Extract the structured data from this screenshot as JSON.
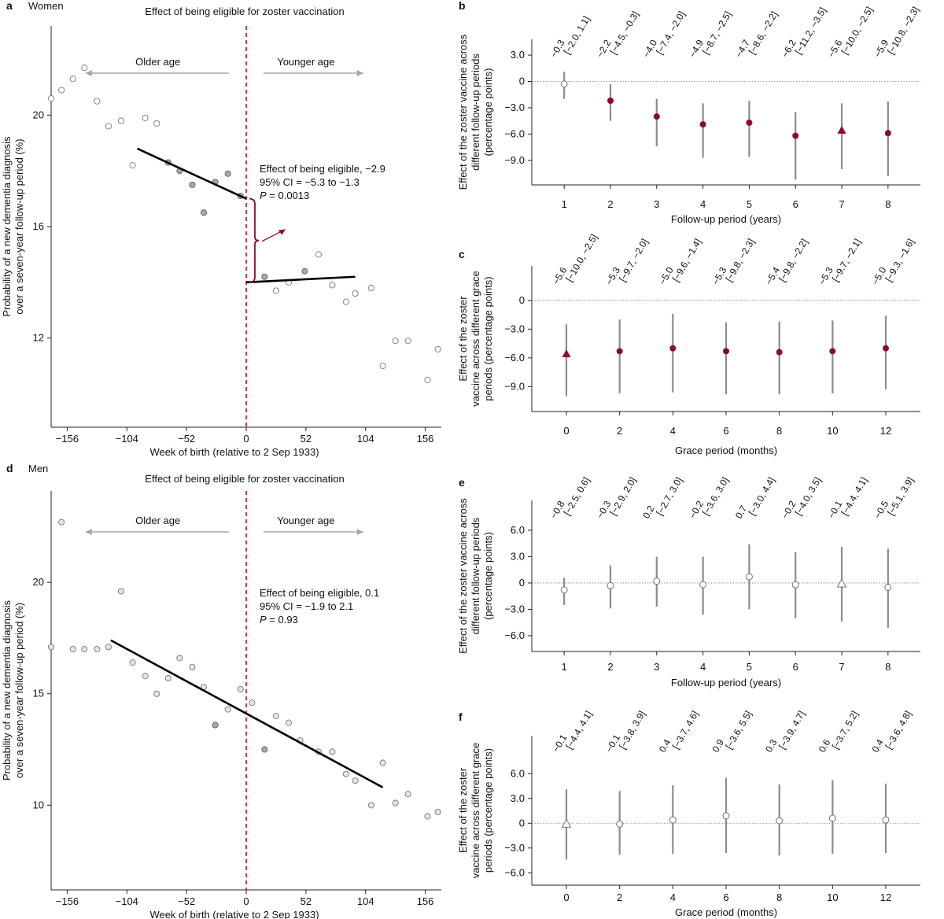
{
  "colors": {
    "crimson": "#8b0a30",
    "dashed_line": "#c0161a",
    "open_marker": "#ffffff",
    "ci_bar": "#8c8c8c",
    "grey_dot": "#a8a8a8",
    "light_dot": "#e4e4e4",
    "arrow_grey": "#a6a6a6"
  },
  "chart_data": [
    {
      "id": "a",
      "panel_letter": "a",
      "subtitle": "Women",
      "type": "scatter",
      "title": "Effect of being eligible for zoster vaccination",
      "xlabel": "Week of birth (relative to 2 Sep 1933)",
      "ylabel": [
        "Probability of a new dementia diagnosis",
        "over a seven-year follow-up period (%)"
      ],
      "xlim": [
        -170,
        170
      ],
      "ylim": [
        8.8,
        23.2
      ],
      "xticks": [
        -156,
        -104,
        -52,
        0,
        52,
        104,
        156
      ],
      "yticks": [
        12,
        16,
        20
      ],
      "older_label": "Older age",
      "younger_label": "Younger age",
      "annotation": [
        "Effect of being eligible, −2.9",
        "95% CI = −5.3 to −1.3",
        "P = 0.0013"
      ],
      "points_light": [
        [
          -170,
          20.6
        ],
        [
          -161,
          20.9
        ],
        [
          -151,
          21.3
        ],
        [
          -141,
          21.7
        ],
        [
          -130,
          20.5
        ],
        [
          -120,
          19.6
        ],
        [
          -109,
          19.8
        ],
        [
          -99,
          18.2
        ],
        [
          -88,
          19.9
        ],
        [
          -78,
          19.7
        ],
        [
          158,
          10.5
        ],
        [
          167,
          11.6
        ],
        [
          130,
          11.9
        ],
        [
          141,
          11.9
        ],
        [
          119,
          11.0
        ],
        [
          109,
          13.8
        ],
        [
          95,
          13.6
        ],
        [
          87,
          13.3
        ],
        [
          75,
          13.9
        ],
        [
          63,
          15.0
        ],
        [
          37,
          14.0
        ],
        [
          26,
          13.7
        ]
      ],
      "points_dark": [
        [
          -68,
          18.3
        ],
        [
          -58,
          18.0
        ],
        [
          -47,
          17.5
        ],
        [
          -37,
          16.5
        ],
        [
          -27,
          17.6
        ],
        [
          -16,
          17.9
        ],
        [
          -5,
          17.1
        ],
        [
          16,
          14.2
        ],
        [
          51,
          14.4
        ]
      ],
      "fit_left": [
        [
          -95,
          18.8
        ],
        [
          0,
          17.0
        ]
      ],
      "fit_right": [
        [
          0,
          14.0
        ],
        [
          95,
          14.2
        ]
      ],
      "brace_range": [
        14.0,
        17.0
      ]
    },
    {
      "id": "d",
      "panel_letter": "d",
      "subtitle": "Men",
      "type": "scatter",
      "title": "Effect of being eligible for zoster vaccination",
      "xlabel": "Week of birth (relative to 2 Sep 1933)",
      "ylabel": [
        "Probability of a new dementia diagnosis",
        "over a seven-year follow-up period (%)"
      ],
      "xlim": [
        -170,
        170
      ],
      "ylim": [
        6.2,
        24.1
      ],
      "xticks": [
        -156,
        -104,
        -52,
        0,
        52,
        104,
        156
      ],
      "yticks": [
        10,
        15,
        20
      ],
      "older_label": "Older age",
      "younger_label": "Younger age",
      "annotation": [
        "Effect of being eligible, 0.1",
        "95% CI = −1.9 to 2.1",
        "P = 0.93"
      ],
      "points_light": [
        [
          -170,
          17.1
        ],
        [
          -161,
          22.7
        ],
        [
          -151,
          17.0
        ],
        [
          -141,
          17.0
        ],
        [
          -130,
          17.0
        ],
        [
          -120,
          17.1
        ],
        [
          -109,
          19.6
        ],
        [
          -99,
          16.4
        ],
        [
          -88,
          15.8
        ],
        [
          -78,
          15.0
        ],
        [
          -68,
          15.7
        ],
        [
          -58,
          16.6
        ],
        [
          -47,
          16.2
        ],
        [
          -37,
          15.3
        ],
        [
          -27,
          13.6
        ],
        [
          -16,
          14.3
        ],
        [
          -5,
          15.2
        ],
        [
          5,
          14.6
        ],
        [
          26,
          14.0
        ],
        [
          37,
          13.7
        ],
        [
          47,
          12.9
        ],
        [
          63,
          12.4
        ],
        [
          75,
          12.4
        ],
        [
          87,
          11.4
        ],
        [
          95,
          11.1
        ],
        [
          109,
          10.0
        ],
        [
          119,
          11.9
        ],
        [
          130,
          10.1
        ],
        [
          141,
          10.5
        ],
        [
          158,
          9.5
        ],
        [
          167,
          9.7
        ]
      ],
      "points_dark": [
        [
          -27,
          13.6
        ],
        [
          16,
          12.5
        ]
      ],
      "fit": [
        [
          -118,
          17.4
        ],
        [
          119,
          10.8
        ]
      ]
    },
    {
      "id": "b",
      "panel_letter": "b",
      "type": "scatter",
      "xlabel": "Follow-up period (years)",
      "ylabel": [
        "Effect of the zoster vaccine across",
        "different follow-up periods",
        "(percentage points)"
      ],
      "x": [
        1,
        2,
        3,
        4,
        5,
        6,
        7,
        8
      ],
      "xlim": [
        0.3,
        8.7
      ],
      "ylim": [
        -11.8,
        4.8
      ],
      "yticks": [
        3,
        0,
        -3,
        -6,
        -9
      ],
      "ytick_labels": [
        "3.0",
        "0",
        "−3.0",
        "−6.0",
        "−9.0"
      ],
      "estimates": [
        -0.3,
        -2.2,
        -4.0,
        -4.9,
        -4.7,
        -6.2,
        -5.6,
        -5.9
      ],
      "ci_low": [
        -2.0,
        -4.5,
        -7.4,
        -8.7,
        -8.6,
        -11.2,
        -10.0,
        -10.8
      ],
      "ci_high": [
        1.1,
        -0.3,
        -2.0,
        -2.5,
        -2.2,
        -3.5,
        -2.5,
        -2.3
      ],
      "labels_top": [
        "−0.3",
        "−2.2",
        "−4.0",
        "−4.9",
        "−4.7",
        "−6.2",
        "−5.6",
        "−5.9"
      ],
      "labels_ci": [
        "[−2.0, 1.1]",
        "[−4.5, −0.3]",
        "[−7.4, −2.0]",
        "[−8.7, −2.5]",
        "[−8.6, −2.2]",
        "[−11.2, −3.5]",
        "[−10.0, −2.5]",
        "[−10.8, −2.3]"
      ],
      "markers": [
        "open",
        "filled",
        "filled",
        "filled",
        "filled",
        "filled",
        "triangle",
        "filled"
      ]
    },
    {
      "id": "c",
      "panel_letter": "c",
      "type": "scatter",
      "xlabel": "Grace period (months)",
      "ylabel": [
        "Effect of the zoster",
        "vaccine across different grace",
        "periods (percentage points)"
      ],
      "x": [
        0,
        2,
        4,
        6,
        8,
        10,
        12
      ],
      "xlim": [
        -1.3,
        13.3
      ],
      "ylim": [
        -11.6,
        3.6
      ],
      "yticks": [
        0,
        -3,
        -6,
        -9
      ],
      "ytick_labels": [
        "0",
        "−3.0",
        "−6.0",
        "−9.0"
      ],
      "estimates": [
        -5.6,
        -5.3,
        -5.0,
        -5.3,
        -5.4,
        -5.3,
        -5.0
      ],
      "ci_low": [
        -10.0,
        -9.7,
        -9.6,
        -9.8,
        -9.8,
        -9.7,
        -9.3
      ],
      "ci_high": [
        -2.5,
        -2.0,
        -1.4,
        -2.3,
        -2.2,
        -2.1,
        -1.6
      ],
      "labels_top": [
        "−5.6",
        "−5.3",
        "−5.0",
        "−5.3",
        "−5.4",
        "−5.3",
        "−5.0"
      ],
      "labels_ci": [
        "[−10.0, −2.5]",
        "[−9.7, −2.0]",
        "[−9.6, −1.4]",
        "[−9.8, −2.3]",
        "[−9.8, −2.2]",
        "[−9.7, −2.1]",
        "[−9.3, −1.6]"
      ],
      "markers": [
        "triangle",
        "filled",
        "filled",
        "filled",
        "filled",
        "filled",
        "filled"
      ]
    },
    {
      "id": "e",
      "panel_letter": "e",
      "type": "scatter",
      "xlabel": "Follow-up period (years)",
      "ylabel": [
        "Effect of the zoster vaccine across",
        "different follow-up periods",
        "(percentage points)"
      ],
      "x": [
        1,
        2,
        3,
        4,
        5,
        6,
        7,
        8
      ],
      "xlim": [
        0.3,
        8.7
      ],
      "ylim": [
        -7.8,
        9.4
      ],
      "yticks": [
        6,
        3,
        0,
        -3,
        -6
      ],
      "ytick_labels": [
        "6.0",
        "3.0",
        "0",
        "−3.0",
        "−6.0"
      ],
      "estimates": [
        -0.8,
        -0.3,
        0.2,
        -0.2,
        0.7,
        -0.2,
        -0.1,
        -0.5
      ],
      "ci_low": [
        -2.5,
        -2.9,
        -2.7,
        -3.6,
        -3.0,
        -4.0,
        -4.4,
        -5.1
      ],
      "ci_high": [
        0.6,
        2.0,
        3.0,
        3.0,
        4.4,
        3.5,
        4.1,
        3.9
      ],
      "labels_top": [
        "−0.8",
        "−0.3",
        "0.2",
        "−0.2",
        "0.7",
        "−0.2",
        "−0.1",
        "−0.5"
      ],
      "labels_ci": [
        "[−2.5, 0.6]",
        "[−2.9, 2.0]",
        "[−2.7, 3.0]",
        "[−3.6, 3.0]",
        "[−3.0, 4.4]",
        "[−4.0, 3.5]",
        "[−4.4, 4.1]",
        "[−5.1, 3.9]"
      ],
      "markers": [
        "open",
        "open",
        "open",
        "open",
        "open",
        "open",
        "open_triangle",
        "open"
      ]
    },
    {
      "id": "f",
      "panel_letter": "f",
      "type": "scatter",
      "xlabel": "Grace period (months)",
      "ylabel": [
        "Effect of the zoster",
        "vaccine across different grace",
        "periods (percentage points)"
      ],
      "x": [
        0,
        2,
        4,
        6,
        8,
        10,
        12
      ],
      "xlim": [
        -1.3,
        13.3
      ],
      "ylim": [
        -7.5,
        10.6
      ],
      "yticks": [
        6,
        3,
        0,
        -3,
        -6
      ],
      "ytick_labels": [
        "6.0",
        "3.0",
        "0",
        "−3.0",
        "−6.0"
      ],
      "estimates": [
        -0.1,
        -0.1,
        0.4,
        0.9,
        0.3,
        0.6,
        0.4
      ],
      "ci_low": [
        -4.4,
        -3.8,
        -3.7,
        -3.6,
        -3.9,
        -3.7,
        -3.6
      ],
      "ci_high": [
        4.1,
        3.9,
        4.6,
        5.5,
        4.7,
        5.2,
        4.8
      ],
      "labels_top": [
        "−0.1",
        "−0.1",
        "0.4",
        "0.9",
        "0.3",
        "0.6",
        "0.4"
      ],
      "labels_ci": [
        "[−4.4, 4.1]",
        "[−3.8, 3.9]",
        "[−3.7, 4.6]",
        "[−3.6, 5.5]",
        "[−3.9, 4.7]",
        "[−3.7, 5.2]",
        "[−3.6, 4.8]"
      ],
      "markers": [
        "open_triangle",
        "open",
        "open",
        "open",
        "open",
        "open",
        "open"
      ]
    }
  ]
}
